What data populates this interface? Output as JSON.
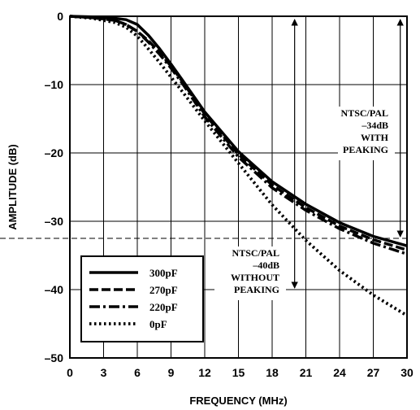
{
  "chart_data": {
    "type": "line",
    "title": "",
    "xlabel": "FREQUENCY (MHz)",
    "ylabel": "AMPLITUDE (dB)",
    "xlim": [
      0,
      30
    ],
    "ylim": [
      -50,
      0
    ],
    "xticks": [
      0,
      3,
      6,
      9,
      12,
      15,
      18,
      21,
      24,
      27,
      30
    ],
    "yticks": [
      0,
      -10,
      -20,
      -30,
      -40,
      -50
    ],
    "ytick_labels": [
      "0",
      "–10",
      "–20",
      "–30",
      "–40",
      "–50"
    ],
    "grid": true,
    "legend": "bottom-left",
    "series": [
      {
        "name": "300pF",
        "style": "solid",
        "x": [
          0,
          2,
          4,
          5,
          6,
          7,
          8,
          9,
          10,
          12,
          15,
          18,
          21,
          24,
          27,
          30
        ],
        "y": [
          0,
          -0.1,
          -0.3,
          -0.5,
          -1.2,
          -2.8,
          -4.8,
          -7,
          -9.3,
          -14,
          -19.8,
          -24.2,
          -27.5,
          -30.2,
          -32.2,
          -33.6
        ]
      },
      {
        "name": "270pF",
        "style": "dashed",
        "x": [
          0,
          2,
          4,
          5,
          6,
          7,
          8,
          9,
          10,
          12,
          15,
          18,
          21,
          24,
          27,
          30
        ],
        "y": [
          0,
          -0.2,
          -0.6,
          -1.2,
          -2.2,
          -3.6,
          -5.3,
          -7.3,
          -9.5,
          -14.3,
          -20.2,
          -24.7,
          -28,
          -30.7,
          -32.7,
          -34.2
        ]
      },
      {
        "name": "220pF",
        "style": "dash-dot",
        "x": [
          0,
          2,
          4,
          5,
          6,
          7,
          8,
          9,
          10,
          12,
          15,
          18,
          21,
          24,
          27,
          30
        ],
        "y": [
          0,
          -0.2,
          -0.6,
          -1.2,
          -2.2,
          -3.8,
          -5.6,
          -7.6,
          -9.8,
          -14.7,
          -20.6,
          -25.1,
          -28.4,
          -31.1,
          -33.2,
          -34.8
        ]
      },
      {
        "name": "0pF",
        "style": "dotted",
        "x": [
          0,
          2,
          4,
          5,
          6,
          7,
          8,
          9,
          10,
          12,
          15,
          18,
          21,
          24,
          27,
          30
        ],
        "y": [
          0,
          -0.3,
          -0.9,
          -1.6,
          -2.9,
          -4.8,
          -6.8,
          -8.9,
          -11,
          -15.3,
          -21.5,
          -27.6,
          -32.8,
          -37.2,
          -40.8,
          -43.8
        ]
      }
    ],
    "reference_lines": [
      {
        "y": -32.5,
        "style": "dashed"
      },
      {
        "y": -40,
        "style": "dashed"
      }
    ],
    "annotations": [
      {
        "lines": [
          "NTSC/PAL",
          "–34dB",
          "WITH",
          "PEAKING"
        ]
      },
      {
        "lines": [
          "NTSC/PAL",
          "–40dB",
          "WITHOUT",
          "PEAKING"
        ]
      }
    ]
  }
}
